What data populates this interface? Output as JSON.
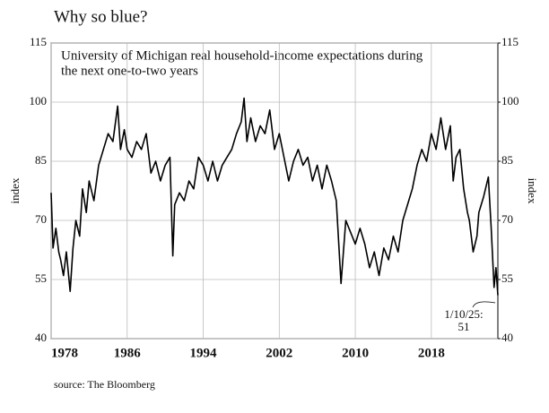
{
  "chart_data": {
    "type": "line",
    "title": "Why so blue?",
    "subtitle": [
      "University of Michigan real household-income expectations during",
      "the next one-to-two years"
    ],
    "ylabel": "index",
    "y2label": "index",
    "source": "source: The Bloomberg",
    "annotation": {
      "date": "1/10/25:",
      "value": 51
    },
    "color": "#000000",
    "grid": true,
    "xlim": [
      1978,
      2025
    ],
    "xticks": [
      1978,
      1986,
      1994,
      2002,
      2010,
      2018
    ],
    "ylim": [
      40,
      115
    ],
    "yticks": [
      40,
      55,
      70,
      85,
      100,
      115
    ],
    "y2lim": [
      40,
      115
    ],
    "y2ticks": [
      40,
      55,
      70,
      85,
      100,
      115
    ],
    "x": [
      1978,
      1978.2,
      1978.5,
      1978.8,
      1979,
      1979.3,
      1979.6,
      1980,
      1980.3,
      1980.6,
      1981,
      1981.3,
      1981.7,
      1982,
      1982.5,
      1983,
      1983.5,
      1984,
      1984.5,
      1985,
      1985.3,
      1985.7,
      1986,
      1986.5,
      1987,
      1987.5,
      1988,
      1988.5,
      1989,
      1989.5,
      1990,
      1990.5,
      1990.8,
      1991,
      1991.5,
      1992,
      1992.5,
      1993,
      1993.5,
      1994,
      1994.5,
      1995,
      1995.5,
      1996,
      1996.5,
      1997,
      1997.5,
      1998,
      1998.3,
      1998.6,
      1999,
      1999.5,
      2000,
      2000.5,
      2001,
      2001.5,
      2002,
      2002.5,
      2003,
      2003.5,
      2004,
      2004.5,
      2005,
      2005.5,
      2006,
      2006.5,
      2007,
      2007.5,
      2008,
      2008.5,
      2009,
      2009.5,
      2010,
      2010.5,
      2011,
      2011.5,
      2012,
      2012.5,
      2013,
      2013.5,
      2014,
      2014.5,
      2015,
      2015.5,
      2016,
      2016.5,
      2017,
      2017.5,
      2018,
      2018.5,
      2019,
      2019.5,
      2020,
      2020.3,
      2020.6,
      2021,
      2021.4,
      2021.8,
      2022,
      2022.4,
      2022.8,
      2023,
      2023.5,
      2024,
      2024.3,
      2024.6,
      2024.8,
      2025
    ],
    "values": [
      77,
      63,
      68,
      62,
      60,
      56,
      62,
      52,
      63,
      70,
      66,
      78,
      72,
      80,
      75,
      84,
      88,
      92,
      90,
      99,
      88,
      93,
      88,
      86,
      90,
      88,
      92,
      82,
      85,
      80,
      84,
      86,
      61,
      74,
      77,
      75,
      80,
      78,
      86,
      84,
      80,
      85,
      80,
      84,
      86,
      88,
      92,
      95,
      101,
      90,
      96,
      90,
      94,
      92,
      98,
      88,
      92,
      86,
      80,
      85,
      88,
      84,
      86,
      80,
      84,
      78,
      84,
      80,
      75,
      54,
      70,
      67,
      64,
      68,
      64,
      58,
      62,
      56,
      63,
      60,
      66,
      62,
      70,
      74,
      78,
      84,
      88,
      85,
      92,
      88,
      96,
      88,
      94,
      80,
      86,
      88,
      78,
      72,
      70,
      62,
      66,
      72,
      76,
      81,
      68,
      53,
      58,
      51
    ]
  }
}
